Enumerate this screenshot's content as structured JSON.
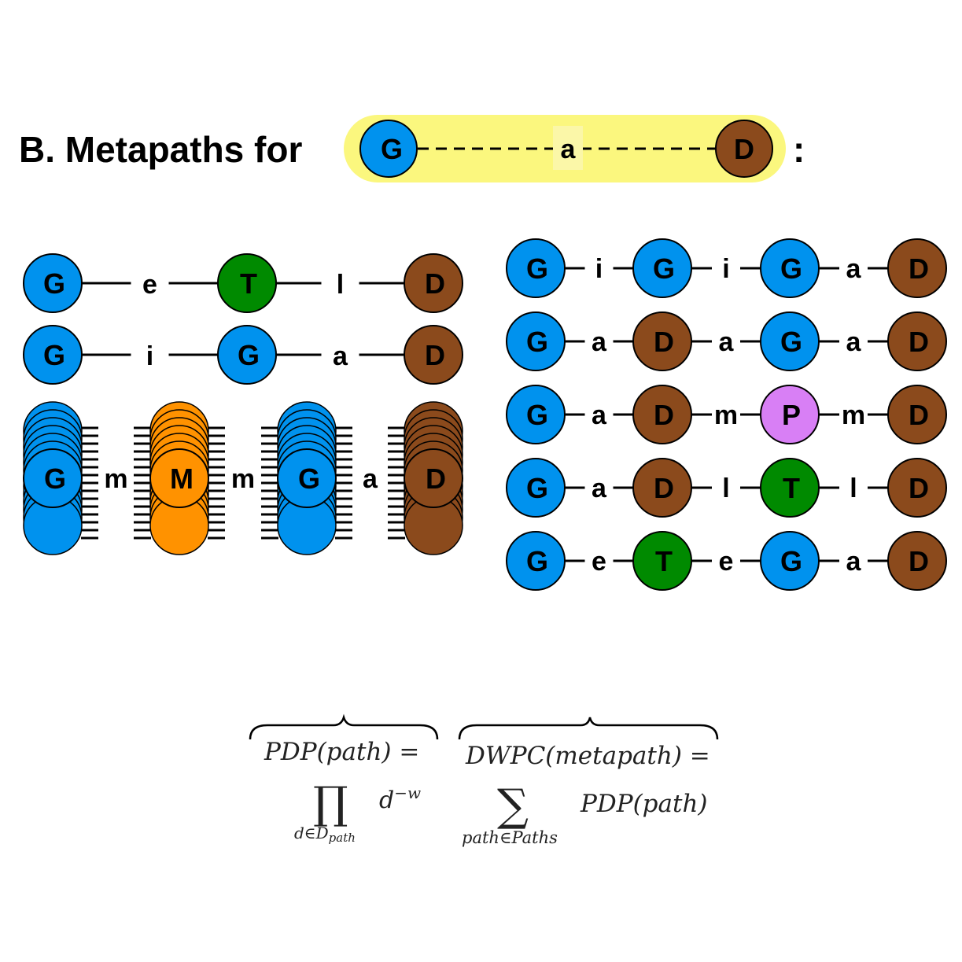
{
  "title": {
    "prefix": "B. Metapaths for",
    "suffix": ":"
  },
  "query": {
    "source": "G",
    "edge": "a",
    "target": "D"
  },
  "colors": {
    "G": "#0092ee",
    "D": "#8b4a1c",
    "T": "#008a00",
    "M": "#ff9200",
    "P": "#d87ff5",
    "highlight": "#fbf77e"
  },
  "left_paths": [
    {
      "nodes": [
        "G",
        "T",
        "D"
      ],
      "edges": [
        "e",
        "l"
      ]
    },
    {
      "nodes": [
        "G",
        "G",
        "D"
      ],
      "edges": [
        "i",
        "a"
      ]
    }
  ],
  "stacked_path": {
    "nodes": [
      "G",
      "M",
      "G",
      "D"
    ],
    "edges": [
      "m",
      "m",
      "a"
    ]
  },
  "right_paths": [
    {
      "nodes": [
        "G",
        "G",
        "G",
        "D"
      ],
      "edges": [
        "i",
        "i",
        "a"
      ]
    },
    {
      "nodes": [
        "G",
        "D",
        "G",
        "D"
      ],
      "edges": [
        "a",
        "a",
        "a"
      ]
    },
    {
      "nodes": [
        "G",
        "D",
        "P",
        "D"
      ],
      "edges": [
        "a",
        "m",
        "m"
      ]
    },
    {
      "nodes": [
        "G",
        "D",
        "T",
        "D"
      ],
      "edges": [
        "a",
        "l",
        "l"
      ]
    },
    {
      "nodes": [
        "G",
        "T",
        "G",
        "D"
      ],
      "edges": [
        "e",
        "e",
        "a"
      ]
    }
  ],
  "formulas": {
    "pdp_lhs": "PDP(path) =",
    "pdp_op": "∏",
    "pdp_sub": "d∈D",
    "pdp_sub_path": "path",
    "pdp_term": "d",
    "pdp_exp": "−w",
    "dwpc_lhs": "DWPC(metapath) =",
    "dwpc_op": "∑",
    "dwpc_sub": "path∈Paths",
    "dwpc_term": "PDP(path)"
  }
}
